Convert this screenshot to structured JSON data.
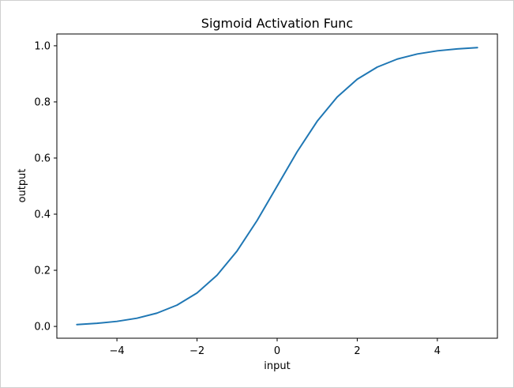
{
  "chart_data": {
    "type": "line",
    "title": "Sigmoid Activation Func",
    "xlabel": "input",
    "ylabel": "output",
    "xlim": [
      -5.5,
      5.5
    ],
    "ylim": [
      -0.042,
      1.042
    ],
    "grid": false,
    "x_ticks": [
      -4,
      -2,
      0,
      2,
      4
    ],
    "x_tick_labels": [
      "−4",
      "−2",
      "0",
      "2",
      "4"
    ],
    "y_ticks": [
      0.0,
      0.2,
      0.4,
      0.6,
      0.8,
      1.0
    ],
    "y_tick_labels": [
      "0.0",
      "0.2",
      "0.4",
      "0.6",
      "0.8",
      "1.0"
    ],
    "series": [
      {
        "color": "#1f77b4",
        "x": [
          -5,
          -4.5,
          -4,
          -3.5,
          -3,
          -2.5,
          -2,
          -1.5,
          -1,
          -0.5,
          0,
          0.5,
          1,
          1.5,
          2,
          2.5,
          3,
          3.5,
          4,
          4.5,
          5
        ],
        "y": [
          0.0067,
          0.011,
          0.018,
          0.0293,
          0.0474,
          0.0759,
          0.1192,
          0.1824,
          0.2689,
          0.3775,
          0.5,
          0.6225,
          0.7311,
          0.8176,
          0.8808,
          0.9241,
          0.9526,
          0.9707,
          0.982,
          0.989,
          0.9933
        ]
      }
    ]
  }
}
